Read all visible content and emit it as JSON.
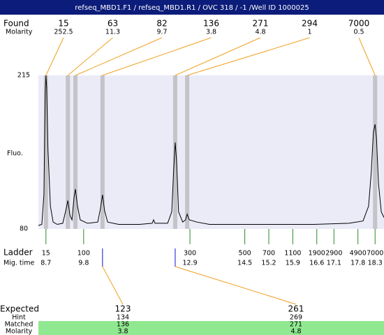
{
  "chart_data": {
    "type": "line",
    "title": "refseq_MBD1.F1 / refseq_MBD1.R1 / OVC 318 / -1 /Well ID 1000025",
    "y_label": "Fluo.",
    "xlim": [
      8.48,
      18.56
    ],
    "ylim": [
      80,
      215
    ],
    "yticks": [
      80,
      215
    ],
    "found": {
      "label": "Found",
      "molarity_label": "Molarity",
      "sizes": [
        15,
        63,
        82,
        136,
        271,
        294,
        7000
      ],
      "molarity": [
        252.5,
        11.3,
        9.7,
        3.8,
        4.8,
        1,
        0.5
      ],
      "times": [
        8.7,
        9.34,
        9.56,
        10.35,
        12.47,
        12.82,
        18.3
      ]
    },
    "ladder": {
      "label": "Ladder",
      "time_label": "Mig. time",
      "sizes": [
        15,
        100,
        300,
        500,
        700,
        1100,
        1900,
        2900,
        4900,
        7000
      ],
      "times": [
        8.7,
        9.8,
        12.9,
        14.5,
        15.2,
        15.9,
        16.6,
        17.1,
        17.8,
        18.3
      ]
    },
    "expected": {
      "label": "Expected",
      "sizes": [
        123,
        261
      ],
      "hint_label": "Hint",
      "hint": [
        134,
        269
      ],
      "matched_label": "Matched",
      "matched": [
        136,
        271
      ],
      "molarity_label": "Molarity",
      "molarity": [
        3.8,
        4.8
      ]
    },
    "trace": {
      "color": "#000000",
      "x": [
        8.48,
        8.58,
        8.64,
        8.68,
        8.7,
        8.72,
        8.76,
        8.83,
        8.91,
        9.03,
        9.19,
        9.27,
        9.34,
        9.4,
        9.46,
        9.52,
        9.56,
        9.62,
        9.7,
        9.91,
        10.21,
        10.29,
        10.35,
        10.41,
        10.5,
        10.82,
        11.43,
        11.8,
        11.84,
        11.88,
        12.25,
        12.37,
        12.43,
        12.47,
        12.51,
        12.57,
        12.69,
        12.77,
        12.82,
        12.88,
        13.1,
        13.47,
        14.49,
        15.51,
        16.52,
        17.54,
        17.95,
        18.11,
        18.19,
        18.25,
        18.3,
        18.34,
        18.4,
        18.48,
        18.56
      ],
      "values": [
        83,
        84,
        110,
        200,
        215,
        205,
        150,
        100,
        86,
        84,
        85,
        95,
        105,
        92,
        88,
        108,
        115,
        100,
        88,
        85,
        86,
        98,
        110,
        96,
        86,
        84,
        84,
        85,
        88,
        85,
        85,
        95,
        135,
        156,
        140,
        95,
        86,
        88,
        93,
        88,
        86,
        84,
        84,
        84,
        84,
        85,
        87,
        100,
        130,
        165,
        172,
        160,
        120,
        95,
        90
      ]
    }
  }
}
